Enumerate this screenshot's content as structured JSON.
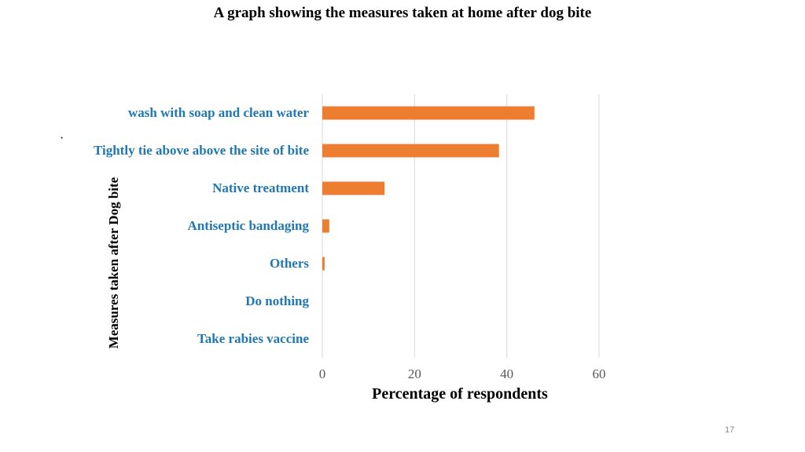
{
  "slide": {
    "title": "A graph showing the measures taken at home after dog bite",
    "bullet": "·",
    "page_number": "17"
  },
  "chart_data": {
    "type": "bar",
    "orientation": "horizontal",
    "title": "",
    "xlabel": "Percentage of respondents",
    "ylabel": "Measures taken after Dog bite",
    "categories": [
      "wash with soap and clean water",
      "Tightly tie above above the site of bite",
      "Native treatment",
      "Antiseptic bandaging",
      "Others",
      "Do nothing",
      "Take rabies vaccine"
    ],
    "values": [
      46,
      38.3,
      13.5,
      1.5,
      0.5,
      0,
      0
    ],
    "xlim": [
      0,
      60
    ],
    "xticks": [
      "0",
      "20",
      "40",
      "60"
    ],
    "grid": "vertical",
    "colors": {
      "bar": "#ED7D31",
      "category_label": "#1F77B4",
      "grid": "#D9D9D9",
      "tick": "#595959"
    }
  }
}
